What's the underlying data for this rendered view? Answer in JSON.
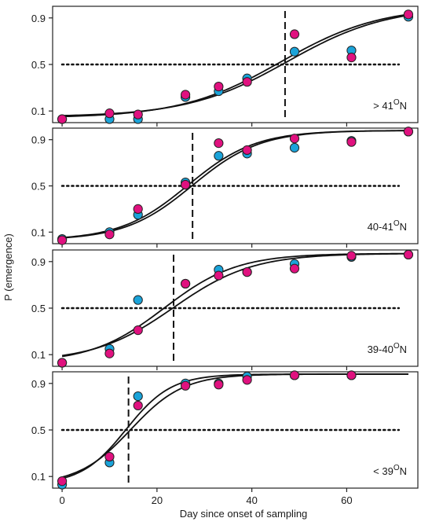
{
  "figure": {
    "ylabel": "P (emergence)",
    "xlabel": "Day since onset of sampling",
    "x_ticks": [
      0,
      20,
      40,
      60
    ],
    "y_ticks": [
      0.1,
      0.5,
      0.9
    ]
  },
  "colors": {
    "series_a": "#1aa3d9",
    "series_b": "#e0117f",
    "curve": "#111111",
    "axis": "#222222"
  },
  "chart_data": [
    {
      "type": "scatter",
      "label_main": "> 41",
      "label_sup": "O",
      "label_end": "N",
      "xlim": [
        -2,
        75
      ],
      "ylim": [
        0.0,
        1.0
      ],
      "threshold": 0.5,
      "vline_x": 47,
      "series": [
        {
          "x": [
            0,
            10,
            16,
            26,
            33,
            39,
            49,
            61,
            73
          ],
          "y": [
            0.03,
            0.03,
            0.03,
            0.22,
            0.27,
            0.38,
            0.61,
            0.62,
            0.91
          ]
        },
        {
          "x": [
            0,
            10,
            16,
            26,
            33,
            39,
            49,
            61,
            73
          ],
          "y": [
            0.03,
            0.08,
            0.07,
            0.24,
            0.31,
            0.35,
            0.76,
            0.56,
            0.93
          ]
        }
      ],
      "fits": [
        {
          "x0": 46,
          "k": 0.095,
          "lo": 0.04,
          "hi": 1.0
        },
        {
          "x0": 47.5,
          "k": 0.095,
          "lo": 0.05,
          "hi": 1.0
        }
      ]
    },
    {
      "type": "scatter",
      "label_main": "40-41",
      "label_sup": "O",
      "label_end": "N",
      "xlim": [
        -2,
        75
      ],
      "ylim": [
        0.0,
        1.0
      ],
      "threshold": 0.5,
      "vline_x": 27.5,
      "series": [
        {
          "x": [
            0,
            10,
            16,
            26,
            33,
            39,
            49,
            61,
            73
          ],
          "y": [
            0.04,
            0.1,
            0.25,
            0.53,
            0.76,
            0.78,
            0.83,
            0.89,
            0.97
          ]
        },
        {
          "x": [
            0,
            10,
            16,
            26,
            33,
            39,
            49,
            61,
            73
          ],
          "y": [
            0.03,
            0.08,
            0.3,
            0.51,
            0.87,
            0.81,
            0.91,
            0.88,
            0.97
          ]
        }
      ],
      "fits": [
        {
          "x0": 26.5,
          "k": 0.14,
          "lo": 0.03,
          "hi": 0.98
        },
        {
          "x0": 27.5,
          "k": 0.14,
          "lo": 0.03,
          "hi": 0.98
        }
      ]
    },
    {
      "type": "scatter",
      "label_main": "39-40",
      "label_sup": "O",
      "label_end": "N",
      "xlim": [
        -2,
        75
      ],
      "ylim": [
        0.0,
        1.0
      ],
      "threshold": 0.5,
      "vline_x": 23.5,
      "series": [
        {
          "x": [
            0,
            10,
            16,
            26,
            33,
            39,
            49,
            61,
            73
          ],
          "y": [
            0.03,
            0.15,
            0.57,
            0.71,
            0.83,
            0.81,
            0.88,
            0.94,
            0.96
          ]
        },
        {
          "x": [
            0,
            10,
            16,
            26,
            33,
            39,
            49,
            61,
            73
          ],
          "y": [
            0.03,
            0.11,
            0.31,
            0.71,
            0.78,
            0.81,
            0.84,
            0.95,
            0.96
          ]
        }
      ],
      "fits": [
        {
          "x0": 21.5,
          "k": 0.13,
          "lo": 0.03,
          "hi": 0.97
        },
        {
          "x0": 23.5,
          "k": 0.12,
          "lo": 0.04,
          "hi": 0.97
        }
      ]
    },
    {
      "type": "scatter",
      "label_main": "< 39",
      "label_sup": "O",
      "label_end": "N",
      "xlim": [
        -2,
        75
      ],
      "ylim": [
        0.0,
        1.0
      ],
      "threshold": 0.5,
      "vline_x": 14,
      "series": [
        {
          "x": [
            0,
            10,
            16,
            26,
            33,
            39,
            49,
            61
          ],
          "y": [
            0.03,
            0.22,
            0.79,
            0.9,
            0.9,
            0.96,
            0.97,
            0.97
          ]
        },
        {
          "x": [
            0,
            10,
            16,
            26,
            33,
            39,
            49,
            61
          ],
          "y": [
            0.06,
            0.27,
            0.71,
            0.88,
            0.89,
            0.93,
            0.97,
            0.97
          ]
        }
      ],
      "fits": [
        {
          "x0": 13.5,
          "k": 0.21,
          "lo": 0.03,
          "hi": 0.98
        },
        {
          "x0": 14.5,
          "k": 0.18,
          "lo": 0.03,
          "hi": 0.98
        }
      ]
    }
  ]
}
